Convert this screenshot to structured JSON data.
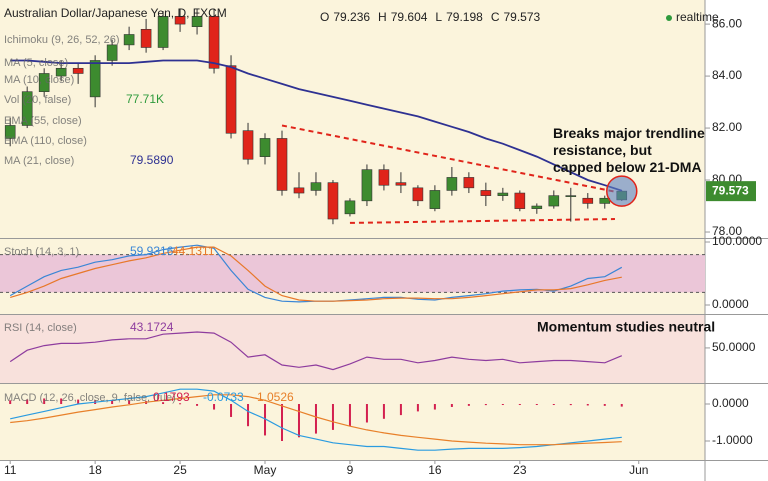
{
  "header": {
    "title": "Australian Dollar/Japanese Yen, D, FXCM",
    "realtime": "realtime",
    "ohlc": [
      {
        "label": "O",
        "value": 79.236
      },
      {
        "label": "H",
        "value": 79.604
      },
      {
        "label": "L",
        "value": 79.198
      },
      {
        "label": "C",
        "value": 79.573
      }
    ]
  },
  "x_axis": {
    "xlim": [
      -0.6,
      40.9
    ],
    "xticks": [
      {
        "value": 0,
        "label": "11"
      },
      {
        "value": 5,
        "label": "18"
      },
      {
        "value": 10,
        "label": "25"
      },
      {
        "value": 15,
        "label": "May"
      },
      {
        "value": 20,
        "label": "9"
      },
      {
        "value": 25,
        "label": "16"
      },
      {
        "value": 30,
        "label": "23"
      },
      {
        "value": 37,
        "label": "Jun"
      }
    ]
  },
  "chart_data": [
    {
      "type": "candlestick",
      "up_color": "#3d8b2f",
      "down_color": "#e0241a",
      "open": [
        81.6,
        82.1,
        83.4,
        84.0,
        84.3,
        83.2,
        84.6,
        85.2,
        85.8,
        85.1,
        86.3,
        85.9,
        86.3,
        84.4,
        81.9,
        80.9,
        81.6,
        79.7,
        79.6,
        79.9,
        78.7,
        79.2,
        80.4,
        79.9,
        79.7,
        78.9,
        79.6,
        80.1,
        79.6,
        79.4,
        79.5,
        78.9,
        79.0,
        79.4,
        79.3,
        79.1,
        79.236
      ],
      "high": [
        82.4,
        83.6,
        84.3,
        84.6,
        84.5,
        84.8,
        85.4,
        85.9,
        86.2,
        86.5,
        86.6,
        86.6,
        86.6,
        84.8,
        82.2,
        81.8,
        81.9,
        80.3,
        80.3,
        80.0,
        79.3,
        80.6,
        80.6,
        80.3,
        79.8,
        79.8,
        80.5,
        80.3,
        79.9,
        79.7,
        79.6,
        79.1,
        79.6,
        79.7,
        79.5,
        79.4,
        79.604
      ],
      "low": [
        81.3,
        82.0,
        83.2,
        83.8,
        83.7,
        82.8,
        84.4,
        85.0,
        84.9,
        85.0,
        85.7,
        85.6,
        84.1,
        81.6,
        80.6,
        80.6,
        79.4,
        79.3,
        79.4,
        78.3,
        78.6,
        79.0,
        79.6,
        79.5,
        79.0,
        78.8,
        79.4,
        79.5,
        79.0,
        79.2,
        78.8,
        78.7,
        78.9,
        78.4,
        78.9,
        78.9,
        79.198
      ],
      "close": [
        82.1,
        83.4,
        84.1,
        84.3,
        84.1,
        84.6,
        85.2,
        85.6,
        85.1,
        86.3,
        86.0,
        86.3,
        84.3,
        81.8,
        80.8,
        81.6,
        79.6,
        79.5,
        79.9,
        78.5,
        79.2,
        80.4,
        79.8,
        79.8,
        79.2,
        79.6,
        80.1,
        79.7,
        79.4,
        79.5,
        78.9,
        79.0,
        79.4,
        79.4,
        79.1,
        79.3,
        79.573
      ],
      "ylim": [
        77.77,
        86.85
      ],
      "yticks": [
        {
          "value": 78,
          "label": "78.00"
        },
        {
          "value": 80,
          "label": "80.00"
        },
        {
          "value": 82,
          "label": "82.00"
        },
        {
          "value": 84,
          "label": "84.00"
        },
        {
          "value": 86,
          "label": "86.00"
        }
      ],
      "series": [
        {
          "name": "MA (21, close)",
          "color": "#2e3192",
          "last_label": "79.5890",
          "values": [
            84.6,
            84.6,
            84.55,
            84.5,
            84.5,
            84.5,
            84.5,
            84.5,
            84.55,
            84.6,
            84.6,
            84.6,
            84.5,
            84.35,
            84.1,
            83.9,
            83.7,
            83.5,
            83.35,
            83.2,
            83.05,
            82.9,
            82.75,
            82.6,
            82.45,
            82.25,
            82.05,
            81.85,
            81.6,
            81.4,
            81.15,
            80.9,
            80.6,
            80.3,
            80.0,
            79.8,
            79.589
          ]
        }
      ],
      "legend": [
        {
          "name": "Ichimoku (9, 26, 52, 26)"
        },
        {
          "name": "MA (5, close)"
        },
        {
          "name": "MA (10, close)"
        },
        {
          "name": "Vol (20, false)",
          "label": "77.71K"
        },
        {
          "name": "EMA (55, close)"
        },
        {
          "name": "EMA (110, close)"
        }
      ],
      "lines": [
        {
          "from": [
            16,
            82.1
          ],
          "to": [
            36,
            79.5
          ],
          "color": "#e0241a"
        },
        {
          "from": [
            20,
            78.35
          ],
          "to": [
            35.6,
            78.5
          ],
          "color": "#e0241a"
        }
      ],
      "annotation": "Breaks major trendline resistance, but capped below 21-DMA"
    },
    {
      "type": "line",
      "name": "Stoch (14, 3, 1)",
      "ylim": [
        -12.7,
        103.2
      ],
      "band": [
        20,
        80
      ],
      "band_color": "#ebc6d8",
      "yticks": [
        {
          "value": 100,
          "label": "100.0000"
        },
        {
          "value": 0,
          "label": "0.0000"
        }
      ],
      "series": [
        {
          "name": "%K",
          "color": "#3a86d6",
          "values": [
            15,
            30,
            45,
            55,
            60,
            68,
            72,
            78,
            80,
            88,
            92,
            95,
            90,
            55,
            25,
            12,
            6,
            5,
            6,
            6,
            8,
            10,
            12,
            12,
            9,
            8,
            12,
            15,
            18,
            22,
            24,
            25,
            22,
            30,
            42,
            45,
            59.9316
          ]
        },
        {
          "name": "%D",
          "color": "#e8782a",
          "values": [
            12,
            20,
            30,
            42,
            50,
            58,
            64,
            70,
            75,
            82,
            87,
            92,
            92,
            78,
            55,
            30,
            15,
            8,
            6,
            6,
            7,
            8,
            10,
            11,
            11,
            10,
            10,
            12,
            15,
            18,
            21,
            24,
            24,
            26,
            32,
            39,
            44.1311
          ]
        }
      ]
    },
    {
      "type": "line",
      "name": "RSI (14, close)",
      "ylim": [
        21,
        78
      ],
      "yticks": [
        {
          "value": 50,
          "label": "50.0000"
        }
      ],
      "series": [
        {
          "name": "RSI",
          "color": "#8e3c9e",
          "values": [
            38,
            48,
            52,
            54,
            54,
            55,
            57,
            58,
            58,
            62,
            63,
            64,
            63,
            55,
            42,
            44,
            35,
            33,
            35,
            31,
            36,
            42,
            40,
            40,
            37,
            39,
            42,
            40,
            39,
            40,
            37,
            38,
            39,
            39,
            38,
            37,
            43.1724
          ]
        }
      ],
      "annotation": "Momentum studies neutral"
    },
    {
      "type": "macd",
      "name": "MACD (12, 26, close, 9, false, true)",
      "readout": [
        0.1793,
        -0.0733,
        -1.0526
      ],
      "ylim": [
        -1.46,
        0.46
      ],
      "yticks": [
        {
          "value": 0,
          "label": "0.0000"
        },
        {
          "value": -1,
          "label": "-1.0000"
        }
      ],
      "histogram": {
        "color": "#d3204f",
        "values": [
          0.1,
          0.12,
          0.15,
          0.15,
          0.12,
          0.1,
          0.1,
          0.1,
          0.08,
          0.05,
          0.02,
          -0.05,
          -0.15,
          -0.35,
          -0.6,
          -0.85,
          -1.0,
          -0.9,
          -0.8,
          -0.7,
          -0.6,
          -0.5,
          -0.4,
          -0.3,
          -0.2,
          -0.15,
          -0.08,
          -0.05,
          -0.03,
          -0.02,
          -0.02,
          -0.02,
          -0.02,
          -0.03,
          -0.04,
          -0.05,
          -0.07
        ]
      },
      "series": [
        {
          "name": "MACD",
          "color": "#2a9be0",
          "values": [
            -0.4,
            -0.3,
            -0.2,
            -0.1,
            0,
            0.05,
            0.1,
            0.15,
            0.2,
            0.3,
            0.4,
            0.4,
            0.35,
            0.1,
            -0.2,
            -0.4,
            -0.65,
            -0.85,
            -0.95,
            -1.05,
            -1.1,
            -1.15,
            -1.15,
            -1.2,
            -1.25,
            -1.25,
            -1.22,
            -1.2,
            -1.2,
            -1.2,
            -1.18,
            -1.15,
            -1.1,
            -1.05,
            -1.0,
            -0.95,
            -0.9
          ]
        },
        {
          "name": "Signal",
          "color": "#e8802a",
          "values": [
            -0.5,
            -0.45,
            -0.38,
            -0.3,
            -0.22,
            -0.15,
            -0.08,
            -0.02,
            0.05,
            0.1,
            0.15,
            0.2,
            0.25,
            0.25,
            0.2,
            0.1,
            -0.05,
            -0.2,
            -0.35,
            -0.48,
            -0.6,
            -0.7,
            -0.78,
            -0.85,
            -0.9,
            -0.95,
            -1.0,
            -1.03,
            -1.06,
            -1.08,
            -1.1,
            -1.1,
            -1.1,
            -1.08,
            -1.06,
            -1.04,
            -1.02
          ]
        }
      ]
    }
  ]
}
